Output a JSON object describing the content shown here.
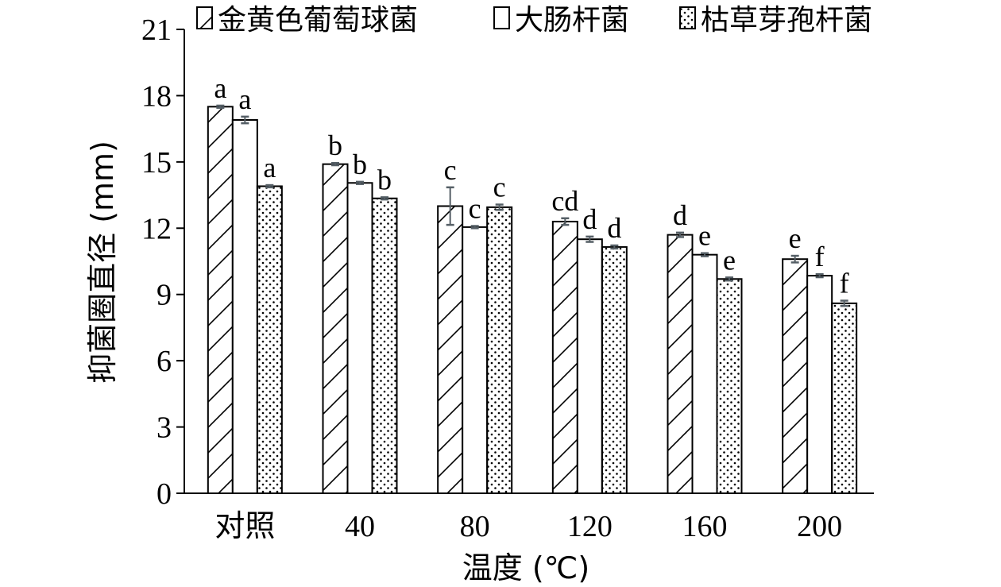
{
  "chart_data": {
    "type": "bar",
    "xlabel": "温度 (℃)",
    "ylabel": "抑菌圈直径 (mm)",
    "categories": [
      "对照",
      "40",
      "80",
      "120",
      "160",
      "200"
    ],
    "ylim": [
      0,
      21
    ],
    "yticks": [
      "0",
      "3",
      "6",
      "9",
      "12",
      "15",
      "18",
      "21"
    ],
    "legend_position": "top",
    "series": [
      {
        "name": "金黄色葡萄球菌",
        "pattern": "diagonal-hatch",
        "values": [
          17.5,
          14.9,
          13.0,
          12.3,
          11.7,
          10.6
        ],
        "errors": [
          0.05,
          0.05,
          0.85,
          0.15,
          0.1,
          0.15
        ],
        "labels": [
          "a",
          "b",
          "c",
          "cd",
          "d",
          "e"
        ]
      },
      {
        "name": "大肠杆菌",
        "pattern": "solid-white",
        "values": [
          16.9,
          14.05,
          12.05,
          11.5,
          10.8,
          9.85
        ],
        "errors": [
          0.15,
          0.05,
          0.05,
          0.12,
          0.07,
          0.07
        ],
        "labels": [
          "a",
          "b",
          "c",
          "d",
          "e",
          "f"
        ]
      },
      {
        "name": "枯草芽孢杆菌",
        "pattern": "dotted",
        "values": [
          13.9,
          13.35,
          12.95,
          11.15,
          9.7,
          8.6
        ],
        "errors": [
          0.05,
          0.05,
          0.12,
          0.07,
          0.07,
          0.12
        ],
        "labels": [
          "a",
          "b",
          "c",
          "d",
          "e",
          "f"
        ]
      }
    ],
    "colors": {
      "stroke": "#000000",
      "fill": "#ffffff",
      "errorbar": "#555f66"
    }
  }
}
